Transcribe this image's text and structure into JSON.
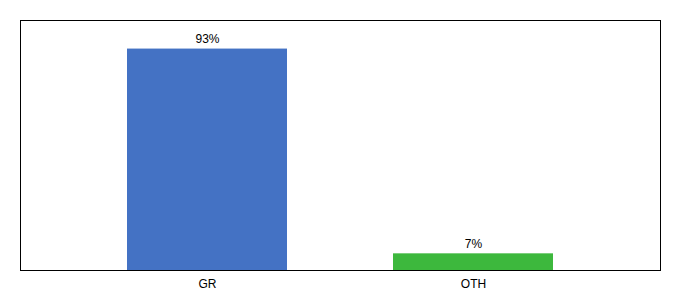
{
  "chart_data": {
    "type": "bar",
    "categories": [
      "GR",
      "OTH"
    ],
    "values": [
      93,
      7
    ],
    "value_labels": [
      "93%",
      "7%"
    ],
    "colors": [
      "#4472c4",
      "#3db83d"
    ],
    "ylim": [
      0,
      105
    ],
    "yticks": [],
    "grid": false,
    "data_labels": true,
    "tick_labels": "x"
  }
}
